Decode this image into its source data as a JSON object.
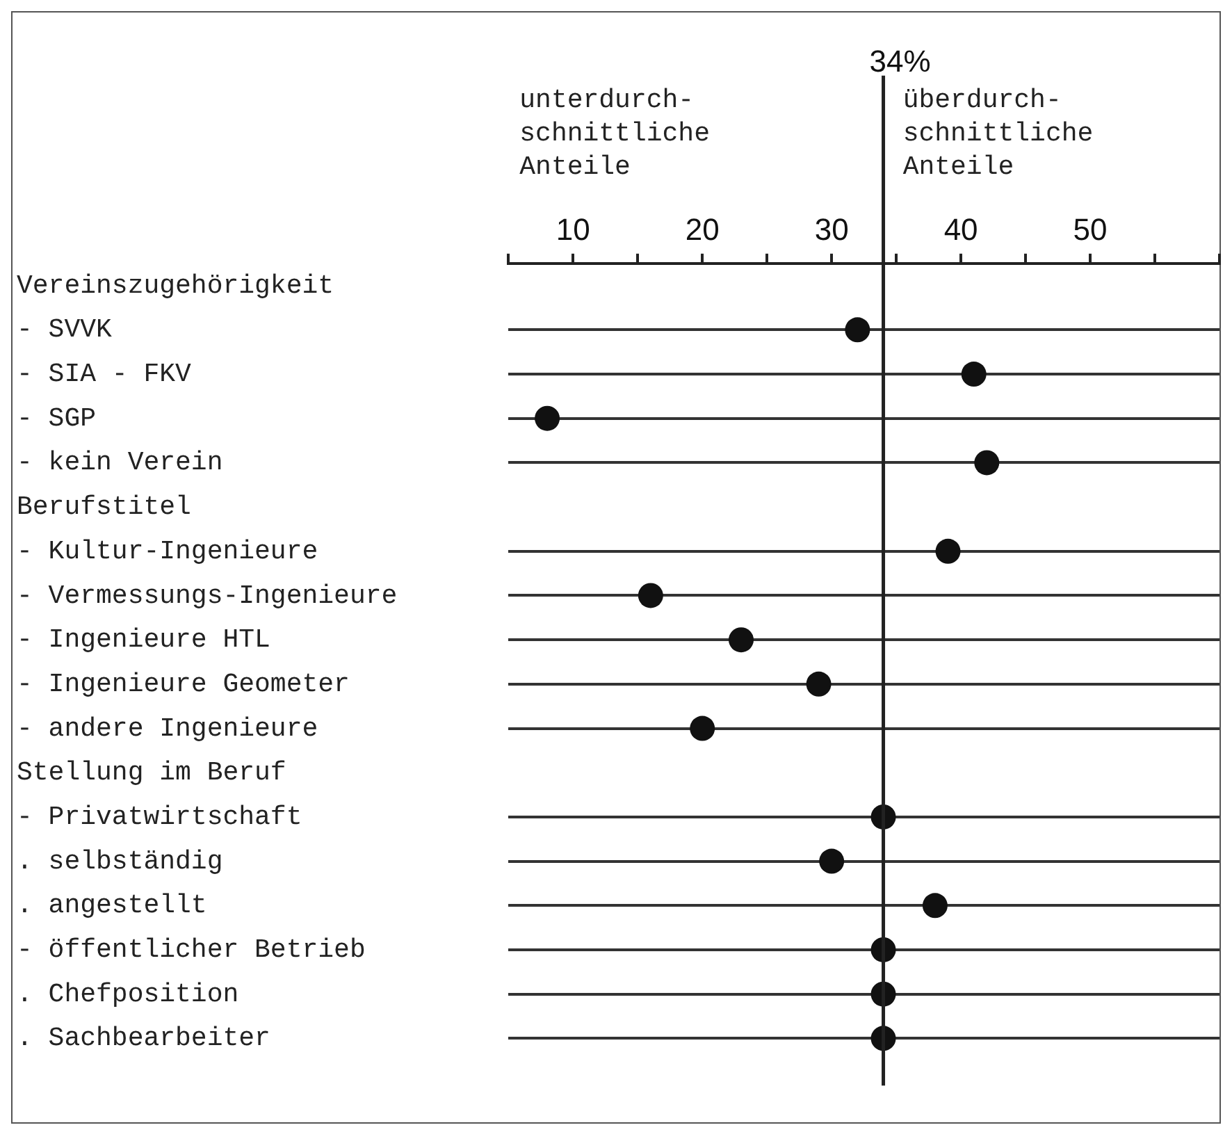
{
  "chart_data": {
    "type": "scatter",
    "categories": [
      "Vereinszugehörigkeit",
      "- SVVK",
      "- SIA - FKV",
      "- SGP",
      "- kein Verein",
      "Berufstitel",
      "- Kultur-Ingenieure",
      "- Vermessungs-Ingenieure",
      "- Ingenieure HTL",
      "- Ingenieure Geometer",
      "- andere Ingenieure",
      "Stellung im Beruf",
      "- Privatwirtschaft",
      ". selbständig",
      ". angestellt",
      "- öffentlicher Betrieb",
      ". Chefposition",
      ". Sachbearbeiter"
    ],
    "values": [
      null,
      32,
      41,
      8,
      42,
      null,
      39,
      16,
      23,
      29,
      20,
      null,
      34,
      30,
      38,
      34,
      34,
      34
    ],
    "color": "#111111",
    "marker": "circle",
    "orientation": "horizontal",
    "xlim": [
      5,
      60
    ],
    "xticks": [
      {
        "value": 5,
        "label": null
      },
      10,
      {
        "value": 15,
        "label": null
      },
      20,
      {
        "value": 25,
        "label": null
      },
      30,
      {
        "value": 35,
        "label": null
      },
      40,
      {
        "value": 45,
        "label": null
      },
      50,
      {
        "value": 55,
        "label": null
      },
      {
        "value": 60,
        "label": null
      }
    ],
    "grid": "y",
    "ref_lines": [
      {
        "axis": "x",
        "value": 34,
        "label": "34%"
      }
    ],
    "annotations": [
      "unterdurch-\nschnittliche\nAnteile",
      "überdurch-\nschnittliche\nAnteile"
    ],
    "legend": false
  }
}
